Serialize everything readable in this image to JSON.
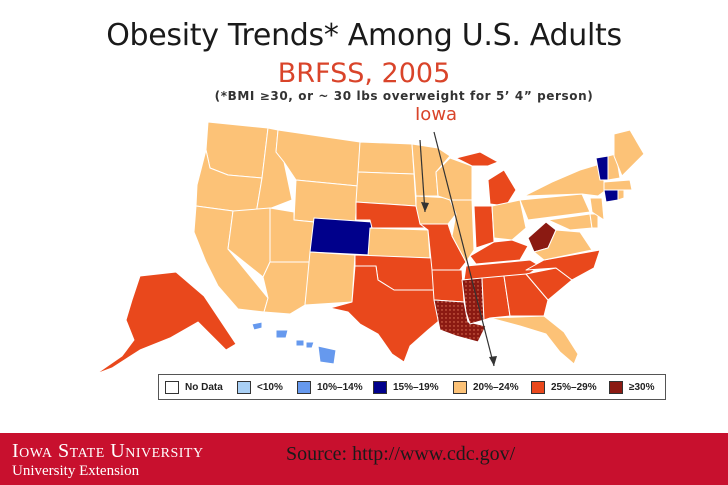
{
  "slide": {
    "title": "Obesity Trends* Among U.S. Adults",
    "subtitle": "BRFSS, 2005",
    "note": "(*BMI ≥30, or ~ 30 lbs overweight for 5’ 4” person)",
    "callout_label": "Iowa",
    "source": "Source: http://www.cdc.gov/"
  },
  "footer": {
    "institution": "Iowa State University",
    "unit": "University Extension"
  },
  "colors": {
    "no_data": "#ffffff",
    "lt10": "#a9d0f5",
    "r10_14": "#6699ee",
    "r15_19": "#00008b",
    "r20_24": "#fcc277",
    "r25_29": "#e9481c",
    "ge30": "#8b1a12",
    "brand_red": "#c8102e",
    "accent_text": "#d9442a"
  },
  "legend": [
    {
      "label": "No Data",
      "color": "#ffffff"
    },
    {
      "label": "<10%",
      "color": "#a9d0f5"
    },
    {
      "label": "10%–14%",
      "color": "#6699ee"
    },
    {
      "label": "15%–19%",
      "color": "#00008b"
    },
    {
      "label": "20%–24%",
      "color": "#fcc277"
    },
    {
      "label": "25%–29%",
      "color": "#e9481c"
    },
    {
      "label": "≥30%",
      "color": "#8b1a12"
    }
  ]
}
